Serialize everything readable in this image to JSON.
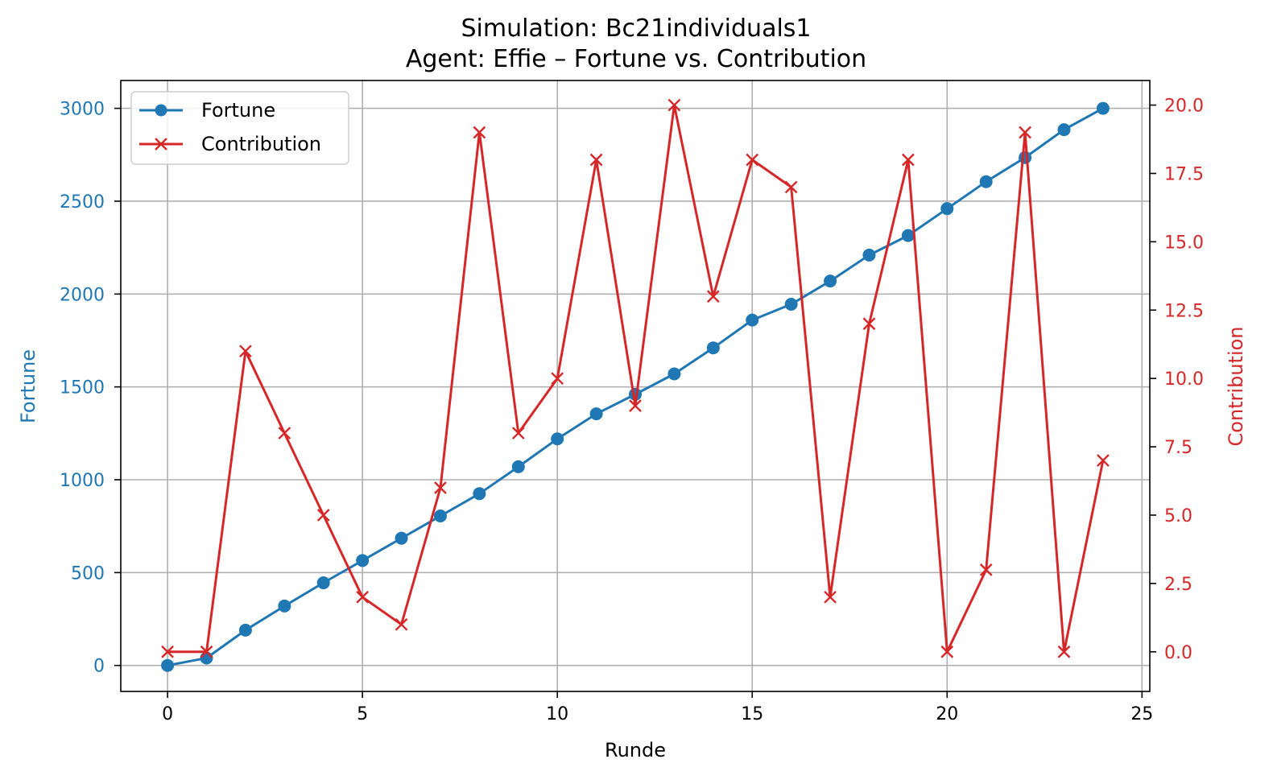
{
  "chart_data": {
    "type": "line",
    "title": "Simulation: Bc21individuals1",
    "subtitle": "Agent: Effie – Fortune vs. Contribution",
    "xlabel": "Runde",
    "ylabel_left": "Fortune",
    "ylabel_right": "Contribution",
    "xlim": [
      -1.2,
      25.2
    ],
    "ylim_left": [
      -140,
      3150
    ],
    "ylim_right": [
      -1.45,
      20.9
    ],
    "x_ticks": [
      0,
      5,
      10,
      15,
      20,
      25
    ],
    "y_left_ticks": [
      0,
      500,
      1000,
      1500,
      2000,
      2500,
      3000
    ],
    "y_right_ticks": [
      "0.0",
      "2.5",
      "5.0",
      "7.5",
      "10.0",
      "12.5",
      "15.0",
      "17.5",
      "20.0"
    ],
    "grid": true,
    "legend_position": "top-left",
    "x": [
      0,
      1,
      2,
      3,
      4,
      5,
      6,
      7,
      8,
      9,
      10,
      11,
      12,
      13,
      14,
      15,
      16,
      17,
      18,
      19,
      20,
      21,
      22,
      23,
      24
    ],
    "series": [
      {
        "name": "Fortune",
        "axis": "left",
        "color": "#1f77b4",
        "marker": "circle",
        "values": [
          0,
          40,
          190,
          320,
          445,
          565,
          685,
          805,
          925,
          1070,
          1220,
          1355,
          1460,
          1570,
          1710,
          1860,
          1945,
          2070,
          2210,
          2315,
          2460,
          2605,
          2735,
          2885,
          3000
        ]
      },
      {
        "name": "Contribution",
        "axis": "right",
        "color": "#d62728",
        "marker": "x",
        "values": [
          0,
          0,
          11,
          8,
          5,
          2,
          1,
          6,
          19,
          8,
          10,
          18,
          9,
          20,
          13,
          18,
          17,
          2,
          12,
          18,
          0,
          3,
          19,
          0,
          7
        ]
      }
    ]
  }
}
